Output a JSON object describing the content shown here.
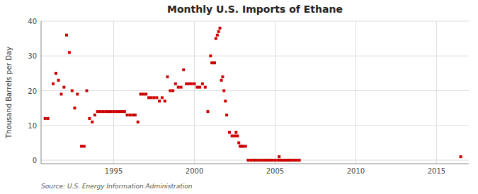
{
  "chart_data": {
    "type": "scatter",
    "title": "Monthly U.S. Imports of Ethane",
    "ylabel": "Thousand Barrels per Day",
    "annotations": [
      "Source: U.S. Energy Information Administration"
    ],
    "color": "#cc0000",
    "marker": "square",
    "grid": true,
    "xlim": [
      1990.5,
      2017
    ],
    "ylim": [
      -1,
      40
    ],
    "xticks": [
      1995,
      2000,
      2005,
      2010,
      2015
    ],
    "yticks": [
      0,
      10,
      20,
      30,
      40
    ],
    "x": [
      1990.75,
      1990.92,
      1991.25,
      1991.42,
      1991.58,
      1991.75,
      1991.92,
      1992.08,
      1992.25,
      1992.42,
      1992.58,
      1992.75,
      1993.0,
      1993.17,
      1993.33,
      1993.5,
      1993.67,
      1993.83,
      1994.0,
      1994.17,
      1994.33,
      1994.5,
      1994.67,
      1994.83,
      1995.0,
      1995.17,
      1995.33,
      1995.5,
      1995.67,
      1995.83,
      1996.0,
      1996.17,
      1996.33,
      1996.5,
      1996.67,
      1996.83,
      1997.0,
      1997.17,
      1997.33,
      1997.5,
      1997.67,
      1997.83,
      1998.0,
      1998.17,
      1998.33,
      1998.5,
      1998.67,
      1998.83,
      1999.0,
      1999.17,
      1999.33,
      1999.5,
      1999.67,
      1999.83,
      2000.0,
      2000.17,
      2000.33,
      2000.5,
      2000.67,
      2000.83,
      2001.0,
      2001.08,
      2001.17,
      2001.25,
      2001.33,
      2001.42,
      2001.5,
      2001.58,
      2001.67,
      2001.75,
      2001.83,
      2001.92,
      2002.0,
      2002.17,
      2002.33,
      2002.5,
      2002.58,
      2002.67,
      2002.75,
      2002.83,
      2002.92,
      2003.0,
      2003.17,
      2003.33,
      2003.5,
      2003.67,
      2003.83,
      2004.0,
      2004.17,
      2004.33,
      2004.5,
      2004.67,
      2004.83,
      2005.0,
      2005.17,
      2005.25,
      2005.33,
      2005.42,
      2005.58,
      2005.67,
      2005.75,
      2005.83,
      2005.92,
      2006.0,
      2006.17,
      2006.33,
      2006.5,
      2016.5
    ],
    "values": [
      12,
      12,
      22,
      25,
      23,
      19,
      21,
      36,
      31,
      20,
      15,
      19,
      4,
      4,
      20,
      12,
      11,
      13,
      14,
      14,
      14,
      14,
      14,
      14,
      14,
      14,
      14,
      14,
      14,
      13,
      13,
      13,
      13,
      11,
      19,
      19,
      19,
      18,
      18,
      18,
      18,
      17,
      18,
      17,
      24,
      20,
      20,
      22,
      21,
      21,
      26,
      22,
      22,
      22,
      22,
      21,
      21,
      22,
      21,
      14,
      30,
      28,
      28,
      28,
      35,
      36,
      37,
      38,
      23,
      24,
      20,
      17,
      13,
      8,
      7,
      7,
      8,
      7,
      5,
      4,
      4,
      4,
      4,
      0,
      0,
      0,
      0,
      0,
      0,
      0,
      0,
      0,
      0,
      0,
      0,
      1,
      0,
      0,
      0,
      0,
      0,
      0,
      0,
      0,
      0,
      0,
      0,
      1
    ]
  }
}
